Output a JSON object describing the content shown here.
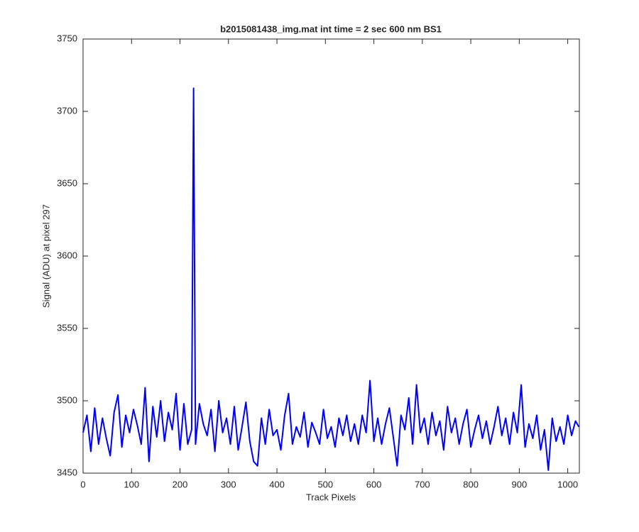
{
  "chart_data": {
    "type": "line",
    "title": "b2015081438_img.mat int time = 2 sec  600 nm BS1",
    "xlabel": "Track Pixels",
    "ylabel": "Signal (ADU) at pixel 297",
    "xlim": [
      0,
      1024
    ],
    "ylim": [
      3450,
      3750
    ],
    "xticks": [
      0,
      100,
      200,
      300,
      400,
      500,
      600,
      700,
      800,
      900,
      1000
    ],
    "yticks": [
      3450,
      3500,
      3550,
      3600,
      3650,
      3700,
      3750
    ],
    "grid": false,
    "x": [
      0,
      8,
      16,
      24,
      32,
      40,
      48,
      56,
      64,
      72,
      80,
      88,
      96,
      104,
      112,
      120,
      128,
      136,
      144,
      152,
      160,
      168,
      176,
      184,
      192,
      200,
      208,
      216,
      224,
      228,
      232,
      240,
      248,
      256,
      264,
      272,
      280,
      288,
      296,
      304,
      312,
      320,
      328,
      336,
      344,
      352,
      360,
      368,
      376,
      384,
      392,
      400,
      408,
      416,
      424,
      432,
      440,
      448,
      456,
      464,
      472,
      480,
      488,
      496,
      504,
      512,
      520,
      528,
      536,
      544,
      552,
      560,
      568,
      576,
      584,
      592,
      600,
      608,
      616,
      624,
      632,
      640,
      648,
      656,
      664,
      672,
      680,
      688,
      696,
      704,
      712,
      720,
      728,
      736,
      744,
      752,
      760,
      768,
      776,
      784,
      792,
      800,
      808,
      816,
      824,
      832,
      840,
      848,
      856,
      864,
      872,
      880,
      888,
      896,
      904,
      912,
      920,
      928,
      936,
      944,
      952,
      960,
      968,
      976,
      984,
      992,
      1000,
      1008,
      1016,
      1023
    ],
    "series": [
      {
        "color": "#0000ff",
        "values": [
          3478,
          3490,
          3465,
          3495,
          3470,
          3488,
          3474,
          3462,
          3492,
          3504,
          3468,
          3490,
          3478,
          3494,
          3483,
          3470,
          3509,
          3458,
          3496,
          3475,
          3500,
          3472,
          3492,
          3480,
          3505,
          3466,
          3498,
          3470,
          3480,
          3716,
          3470,
          3498,
          3484,
          3476,
          3494,
          3465,
          3500,
          3478,
          3488,
          3470,
          3496,
          3466,
          3482,
          3499,
          3472,
          3458,
          3455,
          3488,
          3470,
          3494,
          3476,
          3480,
          3466,
          3490,
          3505,
          3470,
          3482,
          3475,
          3492,
          3468,
          3485,
          3478,
          3470,
          3494,
          3474,
          3482,
          3468,
          3488,
          3476,
          3490,
          3472,
          3484,
          3470,
          3490,
          3478,
          3514,
          3472,
          3488,
          3470,
          3484,
          3495,
          3475,
          3455,
          3490,
          3480,
          3502,
          3470,
          3511,
          3478,
          3488,
          3470,
          3492,
          3476,
          3486,
          3466,
          3496,
          3478,
          3488,
          3470,
          3484,
          3494,
          3468,
          3480,
          3490,
          3474,
          3486,
          3470,
          3482,
          3496,
          3476,
          3488,
          3470,
          3492,
          3478,
          3511,
          3468,
          3484,
          3474,
          3490,
          3466,
          3480,
          3452,
          3488,
          3472,
          3482,
          3470,
          3490,
          3476,
          3486,
          3482
        ]
      }
    ]
  }
}
